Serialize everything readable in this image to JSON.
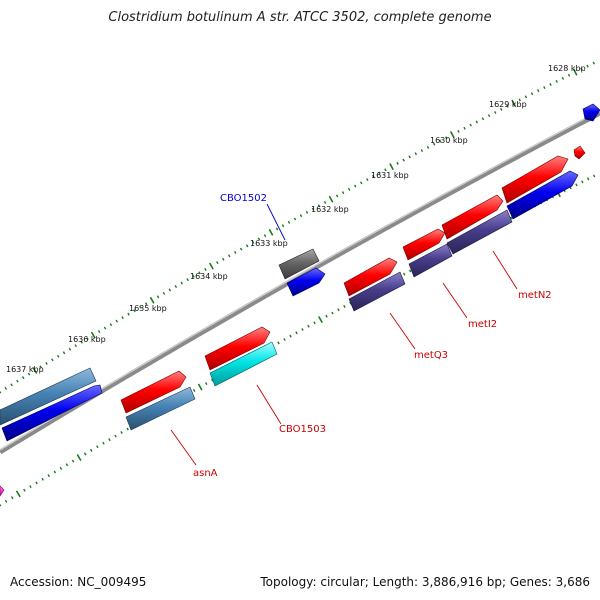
{
  "title": "Clostridium botulinum A str. ATCC 3502, complete genome",
  "footer": {
    "accession": "Accession: NC_009495",
    "topology": "Topology: circular; Length: 3,886,916 bp; Genes: 3,686"
  },
  "scale_labels": [
    "1628 kbp",
    "1629 kbp",
    "1630 kbp",
    "1631 kbp",
    "1632 kbp",
    "1633 kbp",
    "1634 kbp",
    "1635 kbp",
    "1636 kbp",
    "1637 kbp"
  ],
  "gene_labels": [
    {
      "name": "CBO1502",
      "color": "#0000cc"
    },
    {
      "name": "metN2",
      "color": "#cc0000"
    },
    {
      "name": "metI2",
      "color": "#cc0000"
    },
    {
      "name": "metQ3",
      "color": "#cc0000"
    },
    {
      "name": "CBO1503",
      "color": "#cc0000"
    },
    {
      "name": "asnA",
      "color": "#cc0000"
    }
  ],
  "colors": {
    "backbone": "#8a8a8a",
    "tick": "#1a7a1a",
    "red_feature": "#ff0000",
    "blue_feature": "#0000ee",
    "steel_feature": "#4682b4",
    "slate_feature": "#483d8b",
    "gray_feature": "#666666",
    "cyan_feature": "#00e5e5",
    "magenta_feature": "#ff33cc"
  }
}
